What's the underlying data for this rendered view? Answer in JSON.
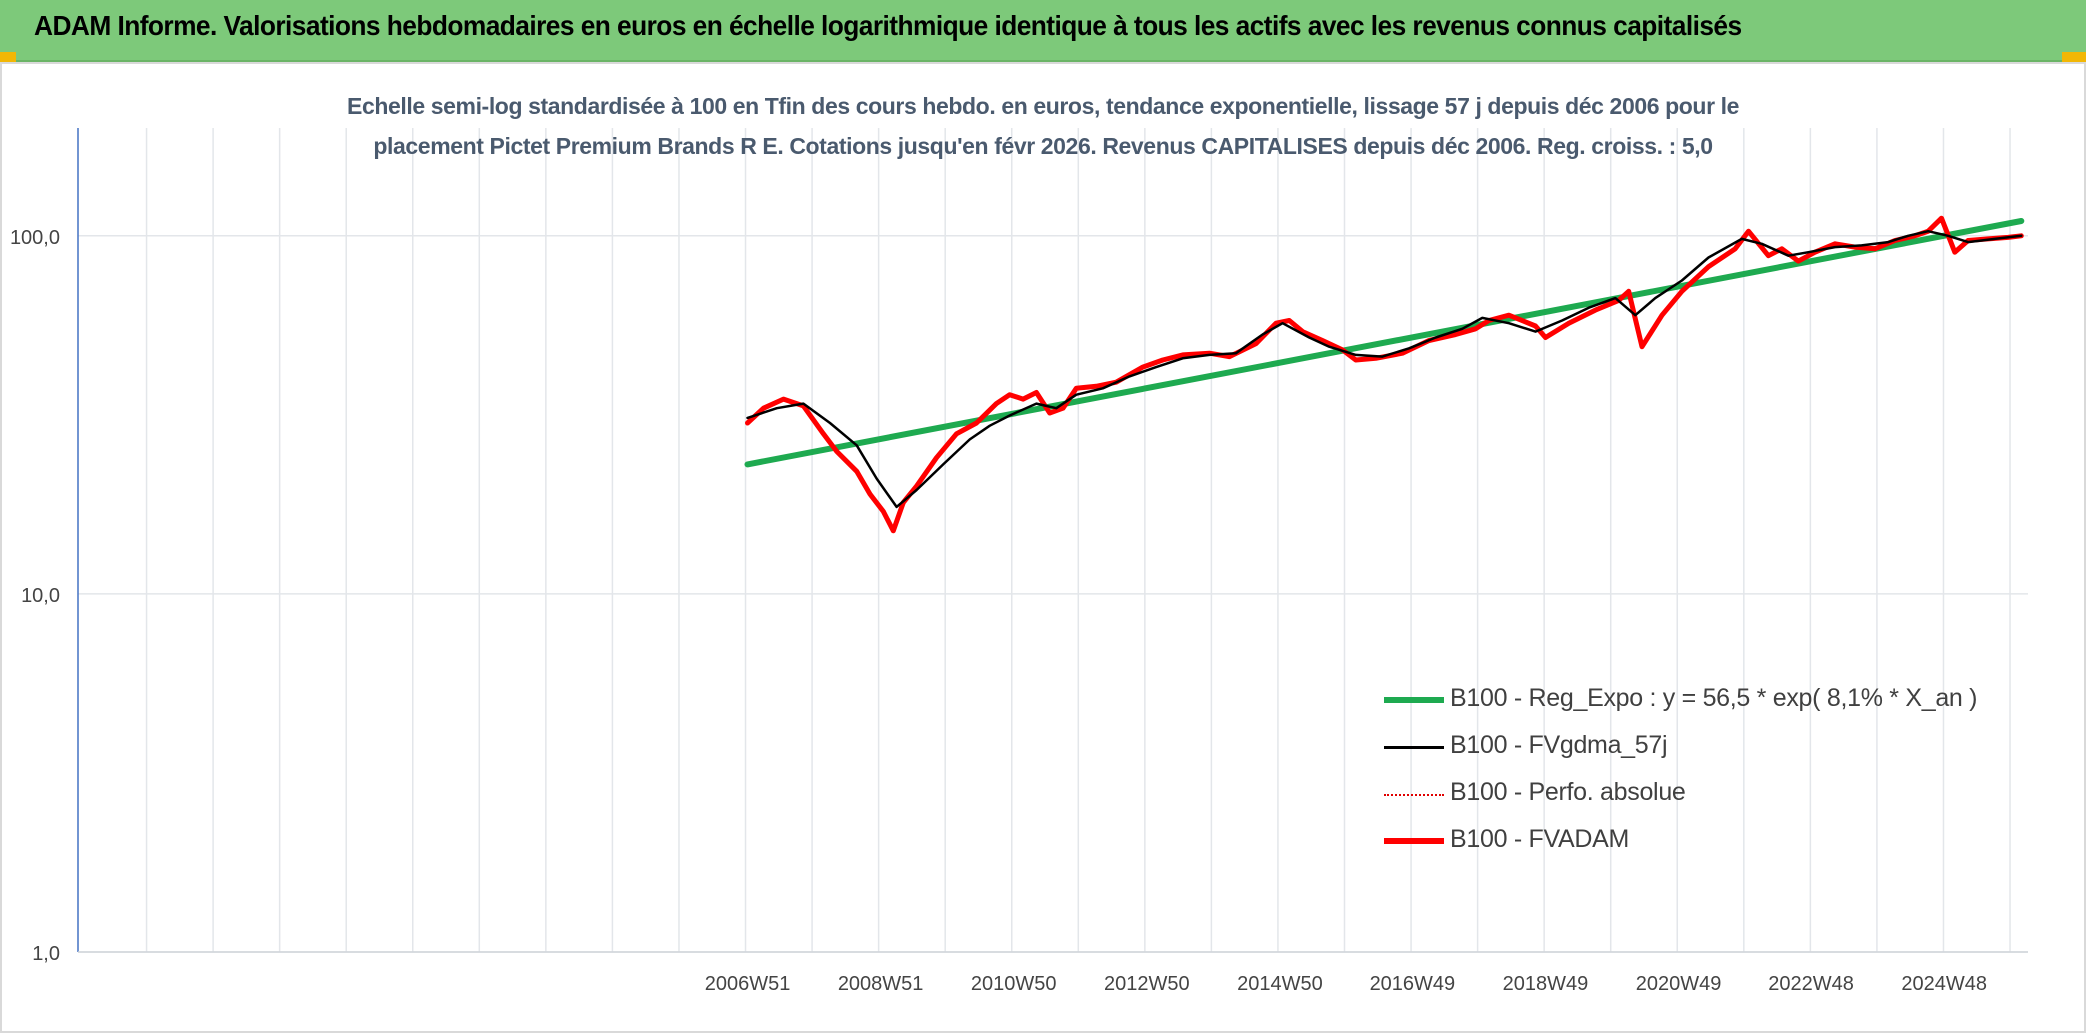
{
  "header": {
    "title": "ADAM Informe. Valorisations hebdomadaires en euros en échelle logarithmique identique à tous les actifs avec les revenus connus capitalisés"
  },
  "chart_data": {
    "type": "line",
    "title": "Echelle semi-log standardisée à 100 en Tfin des cours hebdo. en euros, tendance exponentielle, lissage 57 j depuis déc 2006 pour le placement Pictet Premium Brands R E. Cotations jusqu'en févr 2026. Revenus CAPITALISES depuis déc 2006. Reg. croiss. : 5,0",
    "title_lines": [
      "Echelle semi-log standardisée à 100 en Tfin des cours hebdo. en euros, tendance exponentielle, lissage 57 j depuis déc 2006 pour le",
      "placement Pictet Premium Brands R E. Cotations jusqu'en févr 2026. Revenus CAPITALISES depuis déc 2006. Reg. croiss. : 5,0"
    ],
    "y_scale": "log",
    "ylim": [
      1,
      200
    ],
    "y_ticks": [
      1,
      10,
      100
    ],
    "y_tick_labels": [
      "1,0",
      "10,0",
      "100,0"
    ],
    "x_unit": "year",
    "xlim": [
      1996.9,
      2026.2
    ],
    "x_ticks": [
      2006.96,
      2008.96,
      2010.96,
      2012.96,
      2014.96,
      2016.95,
      2018.95,
      2020.95,
      2022.94,
      2024.94
    ],
    "x_tick_labels": [
      "2006W51",
      "2008W51",
      "2010W50",
      "2012W50",
      "2014W50",
      "2016W49",
      "2018W49",
      "2020W49",
      "2022W48",
      "2024W48"
    ],
    "grid": true,
    "legend_position": "bottom-right",
    "series": [
      {
        "name": "B100 - Reg_Expo : y = 56,5 * exp( 8,1% *  X_an )",
        "color": "#1eaa50",
        "style": "thick",
        "x": [
          2006.96,
          2026.1
        ],
        "y": [
          23.0,
          110.0
        ]
      },
      {
        "name": "B100 - FVgdma_57j",
        "color": "#000000",
        "style": "thin",
        "x": [
          2006.96,
          2007.4,
          2007.8,
          2008.2,
          2008.6,
          2008.9,
          2009.2,
          2009.5,
          2009.9,
          2010.3,
          2010.6,
          2010.9,
          2011.3,
          2011.6,
          2011.9,
          2012.3,
          2012.7,
          2013.1,
          2013.5,
          2013.9,
          2014.3,
          2014.7,
          2015.0,
          2015.4,
          2015.7,
          2016.1,
          2016.5,
          2016.9,
          2017.3,
          2017.7,
          2018.0,
          2018.4,
          2018.8,
          2019.2,
          2019.6,
          2020.0,
          2020.3,
          2020.6,
          2021.0,
          2021.4,
          2021.9,
          2022.2,
          2022.6,
          2022.9,
          2023.3,
          2023.7,
          2024.1,
          2024.4,
          2024.7,
          2025.0,
          2025.3,
          2025.7,
          2026.1
        ],
        "y": [
          31.0,
          33.0,
          34.0,
          30.0,
          26.0,
          21.0,
          17.5,
          19.5,
          23.0,
          27.0,
          29.5,
          31.5,
          34.0,
          33.0,
          36.0,
          37.5,
          40.5,
          43.0,
          45.5,
          46.5,
          47.0,
          53.0,
          57.0,
          52.0,
          49.0,
          46.5,
          46.0,
          48.5,
          52.0,
          55.0,
          59.0,
          57.0,
          54.0,
          58.0,
          63.0,
          67.0,
          60.0,
          67.0,
          75.0,
          87.0,
          98.0,
          95.0,
          88.0,
          90.0,
          93.0,
          94.0,
          96.0,
          100.0,
          103.0,
          100.0,
          96.0,
          98.0,
          100.0
        ]
      },
      {
        "name": "B100 - Perfo. absolue",
        "color": "#e00000",
        "style": "dotted",
        "x": [],
        "y": []
      },
      {
        "name": "B100 - FVADAM",
        "color": "#ff0000",
        "style": "thick",
        "x": [
          2006.96,
          2007.2,
          2007.5,
          2007.8,
          2008.1,
          2008.3,
          2008.6,
          2008.8,
          2009.0,
          2009.15,
          2009.3,
          2009.5,
          2009.8,
          2010.1,
          2010.4,
          2010.7,
          2010.9,
          2011.1,
          2011.3,
          2011.5,
          2011.7,
          2011.9,
          2012.2,
          2012.5,
          2012.9,
          2013.2,
          2013.5,
          2013.9,
          2014.2,
          2014.6,
          2014.9,
          2015.1,
          2015.3,
          2015.6,
          2015.9,
          2016.1,
          2016.4,
          2016.8,
          2017.2,
          2017.6,
          2017.9,
          2018.1,
          2018.4,
          2018.8,
          2018.95,
          2019.3,
          2019.7,
          2020.05,
          2020.2,
          2020.4,
          2020.7,
          2021.0,
          2021.4,
          2021.8,
          2022.0,
          2022.3,
          2022.5,
          2022.75,
          2023.0,
          2023.3,
          2023.6,
          2023.9,
          2024.2,
          2024.5,
          2024.7,
          2024.9,
          2025.1,
          2025.3,
          2025.6,
          2025.9,
          2026.1
        ],
        "y": [
          30.0,
          33.0,
          35.0,
          33.5,
          28.0,
          25.0,
          22.0,
          19.0,
          17.0,
          15.0,
          18.0,
          20.0,
          24.0,
          28.0,
          30.0,
          34.0,
          36.0,
          35.0,
          36.5,
          32.0,
          33.0,
          37.5,
          38.0,
          39.0,
          43.0,
          45.0,
          46.5,
          47.0,
          46.0,
          50.0,
          57.0,
          58.0,
          54.0,
          51.0,
          48.0,
          45.0,
          45.5,
          47.0,
          51.0,
          53.0,
          55.0,
          58.0,
          60.0,
          56.0,
          52.0,
          57.0,
          62.0,
          66.0,
          70.0,
          49.0,
          60.0,
          70.0,
          82.0,
          92.0,
          103.0,
          88.0,
          92.0,
          85.0,
          90.0,
          95.0,
          93.0,
          92.0,
          97.0,
          100.0,
          103.0,
          112.0,
          90.0,
          97.0,
          98.0,
          99.0,
          100.0
        ]
      }
    ]
  }
}
